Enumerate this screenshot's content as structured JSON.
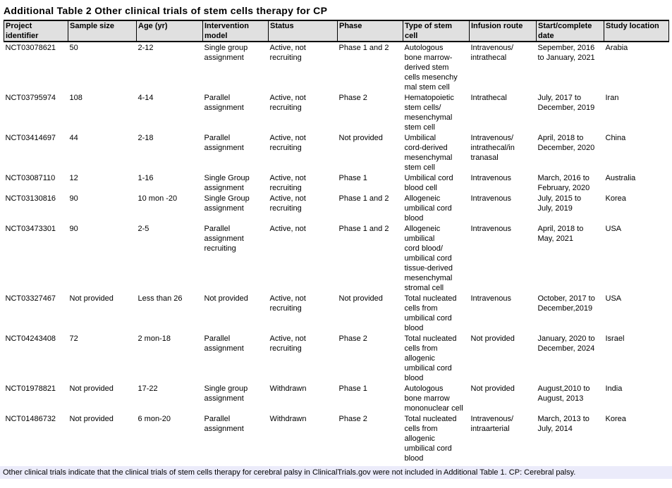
{
  "page_title": "Additional Table 2 Other clinical trials of stem cells therapy for CP",
  "table": {
    "columns": [
      "Project\nidentifier",
      "Sample size",
      "Age (yr)",
      "Intervention\nmodel",
      "Status",
      "Phase",
      "Type of stem\ncell",
      "Infusion route",
      "Start/complete\ndate",
      "Study location"
    ],
    "rows": [
      [
        "NCT03078621",
        "50",
        "2-12",
        "Single group\nassignment",
        "Active, not\nrecruiting",
        "Phase 1 and 2",
        "Autologous\nbone marrow-\nderived stem\ncells mesenchy\nmal stem cell",
        "Intravenous/\nintrathecal",
        "Sepember, 2016\nto January, 2021",
        "Arabia"
      ],
      [
        "NCT03795974",
        "108",
        "4-14",
        "Parallel\nassignment",
        "Active, not\nrecruiting",
        "Phase 2",
        "Hematopoietic\nstem cells/\nmesenchymal\nstem cell",
        "Intrathecal",
        "July, 2017 to\nDecember, 2019",
        "Iran"
      ],
      [
        "NCT03414697",
        "44",
        "2-18",
        "Parallel\nassignment",
        "Active, not\nrecruiting",
        "Not provided",
        "Umbilical\ncord-derived\nmesenchymal\nstem cell",
        "Intravenous/\nintrathecal/in\ntranasal",
        "April, 2018 to\nDecember, 2020",
        "China"
      ],
      [
        "NCT03087110",
        "12",
        "1-16",
        "Single Group\nassignment",
        "Active, not\nrecruiting",
        "Phase 1",
        "Umbilical cord\nblood cell",
        "Intravenous",
        "March, 2016 to\nFebruary, 2020",
        "Australia"
      ],
      [
        "NCT03130816",
        "90",
        "10 mon -20",
        "Single Group\nassignment",
        "Active, not\nrecruiting",
        "Phase 1 and 2",
        "Allogeneic\numbilical cord\nblood",
        "Intravenous",
        "July, 2015 to\nJuly, 2019",
        "Korea"
      ],
      [
        "NCT03473301",
        "90",
        "2-5",
        "Parallel\nassignment\nrecruiting",
        "Active, not",
        "Phase 1 and 2",
        "Allogeneic\numbilical\ncord blood/\numbilical cord\ntissue-derived\nmesenchymal\nstromal cell",
        "Intravenous",
        "April, 2018 to\nMay, 2021",
        "USA"
      ],
      [
        "NCT03327467",
        "Not provided",
        "Less than 26",
        "Not provided",
        "Active, not\nrecruiting",
        "Not provided",
        "Total nucleated\ncells from\numbilical cord\nblood",
        "Intravenous",
        "October, 2017 to\nDecember,2019",
        "USA"
      ],
      [
        "NCT04243408",
        "72",
        "2 mon-18",
        "Parallel\nassignment",
        "Active, not\nrecruiting",
        "Phase 2",
        "Total nucleated\ncells from\nallogenic\numbilical cord\nblood",
        "Not provided",
        "January, 2020 to\nDecember, 2024",
        "Israel"
      ],
      [
        "NCT01978821",
        "Not provided",
        "17-22",
        "Single group\nassignment",
        "Withdrawn",
        "Phase 1",
        "Autologous\nbone marrow\nmononuclear cell",
        "Not provided",
        "August,2010 to\nAugust, 2013",
        "India"
      ],
      [
        "NCT01486732",
        "Not provided",
        "6 mon-20",
        "Parallel\nassignment",
        "Withdrawn",
        "Phase 2",
        "Total nucleated\ncells from\nallogenic\numbilical cord\nblood",
        "Intravenous/\nintraarterial",
        "March, 2013 to\nJuly, 2014",
        "Korea"
      ]
    ]
  },
  "footnote": "Other clinical trials indicate that the clinical trials of stem cells therapy for cerebral palsy in ClinicalTrials.gov were not included in Additional Table 1. CP: Cerebral palsy.",
  "colors": {
    "header_bg": "#e0e0e0",
    "footnote_bg": "#ebebfa",
    "border": "#000000"
  }
}
